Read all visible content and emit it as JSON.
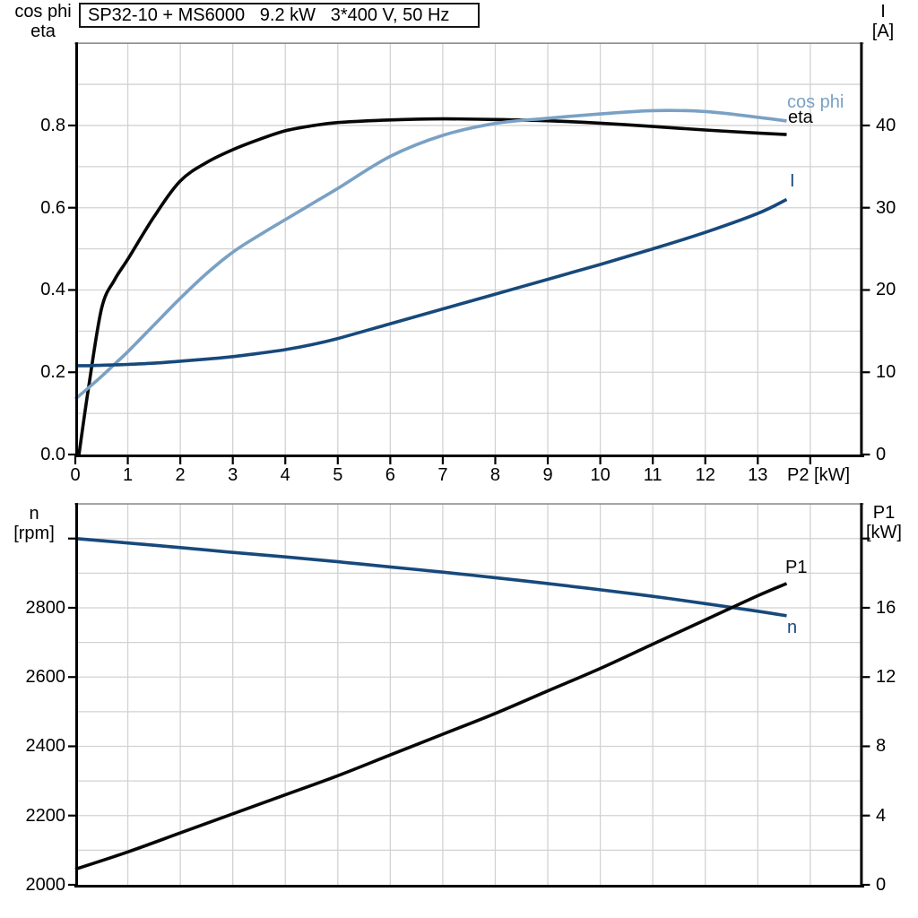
{
  "colors": {
    "curve_black": "#070707",
    "curve_light_blue": "#7AA1C4",
    "curve_dark_blue": "#17497B",
    "grid": "#D2D2D2",
    "chart_border": "#8E8E8E",
    "axis": "#000000"
  },
  "chart_data": [
    {
      "type": "line",
      "title": "SP32-10 + MS6000   9.2 kW   3*400 V, 50 Hz",
      "x_axis": {
        "title": "P2 [kW]",
        "range": [
          0,
          15
        ],
        "grid_step": 1,
        "tick_values": [
          0,
          1,
          2,
          3,
          4,
          5,
          6,
          7,
          8,
          9,
          10,
          11,
          12,
          13,
          14
        ],
        "tick_labels": [
          "0",
          "1",
          "2",
          "3",
          "4",
          "5",
          "6",
          "7",
          "8",
          "9",
          "10",
          "11",
          "12",
          "13",
          ""
        ]
      },
      "left_axis": {
        "title_lines": [
          "cos phi",
          "eta"
        ],
        "range": [
          0,
          1
        ],
        "grid_step": 0.1,
        "tick_values": [
          0,
          0.2,
          0.4,
          0.6,
          0.8
        ],
        "tick_labels": [
          "0.0",
          "0.2",
          "0.4",
          "0.6",
          "0.8"
        ]
      },
      "right_axis": {
        "title_lines": [
          "I",
          "[A]"
        ],
        "range": [
          0,
          50
        ],
        "tick_values": [
          0,
          10,
          20,
          30,
          40
        ],
        "tick_labels": [
          "0",
          "10",
          "20",
          "30",
          "40"
        ]
      },
      "legend_position": "end-of-curve",
      "grid": true,
      "series": [
        {
          "name": "eta",
          "color": "curve_black",
          "axis": "left",
          "x": [
            0.07,
            0.25,
            0.5,
            0.75,
            1,
            1.5,
            2,
            2.5,
            3,
            3.5,
            4,
            4.5,
            5,
            6,
            7,
            8,
            9,
            10,
            11,
            12,
            13,
            13.55
          ],
          "values": [
            0,
            0.16,
            0.355,
            0.425,
            0.475,
            0.578,
            0.665,
            0.71,
            0.741,
            0.766,
            0.787,
            0.799,
            0.807,
            0.8135,
            0.816,
            0.8145,
            0.8115,
            0.8055,
            0.7975,
            0.789,
            0.7815,
            0.778
          ]
        },
        {
          "name": "cos phi",
          "color": "curve_light_blue",
          "axis": "left",
          "x": [
            0,
            0.25,
            0.5,
            0.75,
            1,
            1.5,
            2,
            2.5,
            3,
            3.5,
            4,
            4.5,
            5,
            6,
            7,
            8,
            9,
            10,
            11,
            12,
            13,
            13.55
          ],
          "values": [
            0.135,
            0.162,
            0.19,
            0.22,
            0.25,
            0.315,
            0.38,
            0.44,
            0.492,
            0.533,
            0.571,
            0.609,
            0.647,
            0.725,
            0.776,
            0.805,
            0.8175,
            0.828,
            0.836,
            0.834,
            0.82,
            0.811
          ]
        },
        {
          "name": "I",
          "color": "curve_dark_blue",
          "axis": "right",
          "x": [
            0,
            0.25,
            0.5,
            0.75,
            1,
            1.5,
            2,
            2.5,
            3,
            3.5,
            4,
            4.5,
            5,
            6,
            7,
            8,
            9,
            10,
            11,
            12,
            13,
            13.55
          ],
          "values": [
            10.8,
            10.8,
            10.85,
            10.9,
            10.95,
            11.1,
            11.35,
            11.6,
            11.9,
            12.3,
            12.75,
            13.35,
            14.1,
            15.9,
            17.7,
            19.5,
            21.3,
            23.1,
            25.0,
            27.0,
            29.3,
            31.0
          ]
        }
      ]
    },
    {
      "type": "line",
      "title": "",
      "x_axis": {
        "title": "",
        "range": [
          0,
          15
        ],
        "grid_step": 1,
        "tick_values": [],
        "tick_labels": []
      },
      "left_axis": {
        "title_lines": [
          "n",
          "[rpm]"
        ],
        "range": [
          2000,
          3100
        ],
        "grid_step": 100,
        "tick_values": [
          2000,
          2200,
          2400,
          2600,
          2800,
          3000
        ],
        "tick_labels": [
          "2000",
          "2200",
          "2400",
          "2600",
          "2800",
          ""
        ]
      },
      "right_axis": {
        "title_lines": [
          "P1",
          "[kW]"
        ],
        "range": [
          0,
          22
        ],
        "tick_values": [
          0,
          4,
          8,
          12,
          16,
          20
        ],
        "tick_labels": [
          "0",
          "4",
          "8",
          "12",
          "16",
          ""
        ]
      },
      "legend_position": "end-of-curve",
      "grid": true,
      "series": [
        {
          "name": "n",
          "color": "curve_dark_blue",
          "axis": "left",
          "x": [
            0,
            1,
            2,
            3,
            4,
            5,
            6,
            7,
            8,
            9,
            10,
            11,
            12,
            13,
            13.55
          ],
          "values": [
            3000,
            2987,
            2974,
            2960,
            2947,
            2933,
            2918,
            2903,
            2887,
            2870,
            2852,
            2833,
            2812,
            2790,
            2777
          ]
        },
        {
          "name": "P1",
          "color": "curve_black",
          "axis": "right",
          "x": [
            0,
            1,
            2,
            3,
            4,
            5,
            6,
            7,
            8,
            9,
            10,
            11,
            12,
            13,
            13.55
          ],
          "values": [
            0.9,
            1.9,
            3.0,
            4.1,
            5.2,
            6.3,
            7.5,
            8.7,
            9.9,
            11.2,
            12.5,
            13.9,
            15.3,
            16.7,
            17.4
          ]
        }
      ]
    }
  ]
}
